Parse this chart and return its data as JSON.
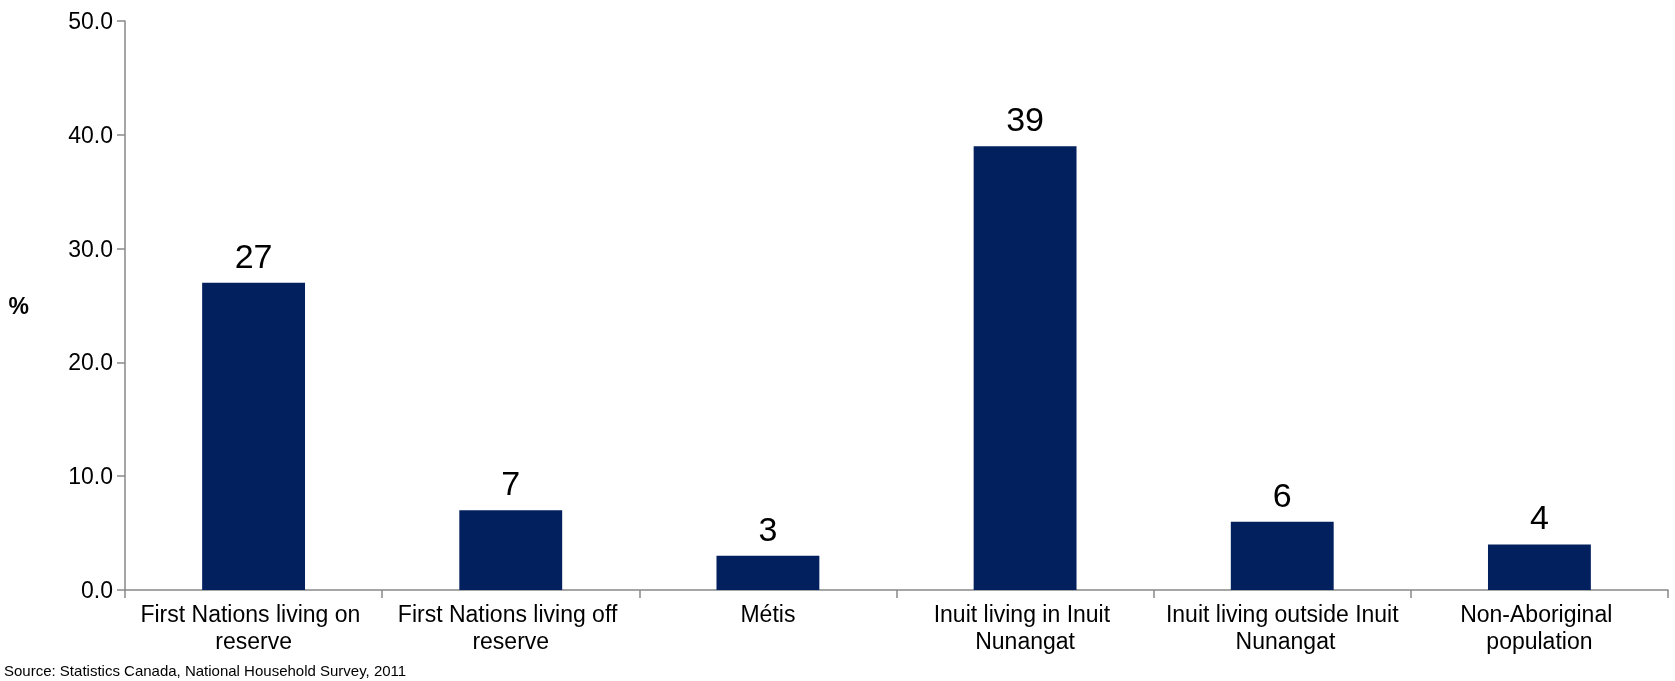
{
  "chart_data": {
    "type": "bar",
    "ylabel": "%",
    "categories": [
      "First Nations living on reserve",
      "First Nations living off reserve",
      "Métis",
      "Inuit living in Inuit Nunangat",
      "Inuit living outside Inuit Nunangat",
      "Non-Aboriginal population"
    ],
    "values": [
      27,
      7,
      3,
      39,
      6,
      4
    ],
    "color": "#02205e",
    "data_labels": true,
    "ylim": [
      0,
      50
    ],
    "yticks": [
      {
        "value": 0,
        "label": "0.0"
      },
      {
        "value": 10,
        "label": "10.0"
      },
      {
        "value": 20,
        "label": "20.0"
      },
      {
        "value": 30,
        "label": "30.0"
      },
      {
        "value": 40,
        "label": "40.0"
      },
      {
        "value": 50,
        "label": "50.0"
      }
    ],
    "grid": false,
    "annotations": [
      "Source: Statistics Canada, National Household Survey, 2011"
    ]
  }
}
